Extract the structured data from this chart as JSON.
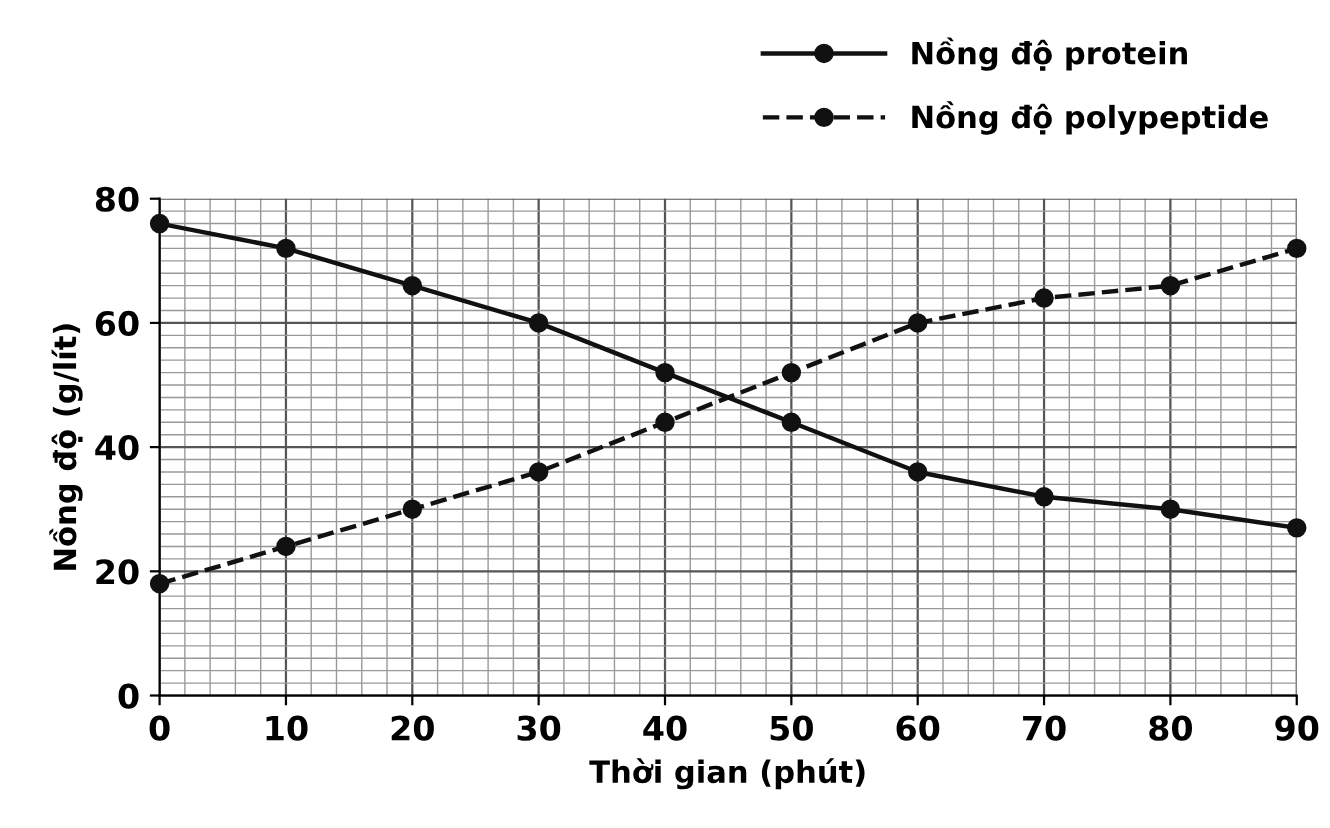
{
  "chart_data": {
    "type": "line",
    "xlabel": "Thời gian (phút)",
    "ylabel": "Nồng độ (g/lít)",
    "x": [
      0,
      10,
      20,
      30,
      40,
      50,
      60,
      70,
      80,
      90
    ],
    "series": [
      {
        "name": "Nồng độ protein",
        "color": "#111111",
        "values": [
          76,
          72,
          66,
          60,
          52,
          44,
          36,
          32,
          30,
          27
        ],
        "line_style": "solid"
      },
      {
        "name": "Nồng độ polypeptide",
        "color": "#111111",
        "values": [
          18,
          24,
          30,
          36,
          44,
          52,
          60,
          64,
          66,
          72
        ],
        "line_style": "dashed"
      }
    ],
    "marker": "circle",
    "xlim": [
      0,
      90
    ],
    "ylim": [
      0,
      80
    ],
    "xticks": [
      0,
      10,
      20,
      30,
      40,
      50,
      60,
      70,
      80,
      90
    ],
    "yticks": [
      0,
      20,
      40,
      60,
      80
    ],
    "grid": true,
    "legend": "top right"
  }
}
